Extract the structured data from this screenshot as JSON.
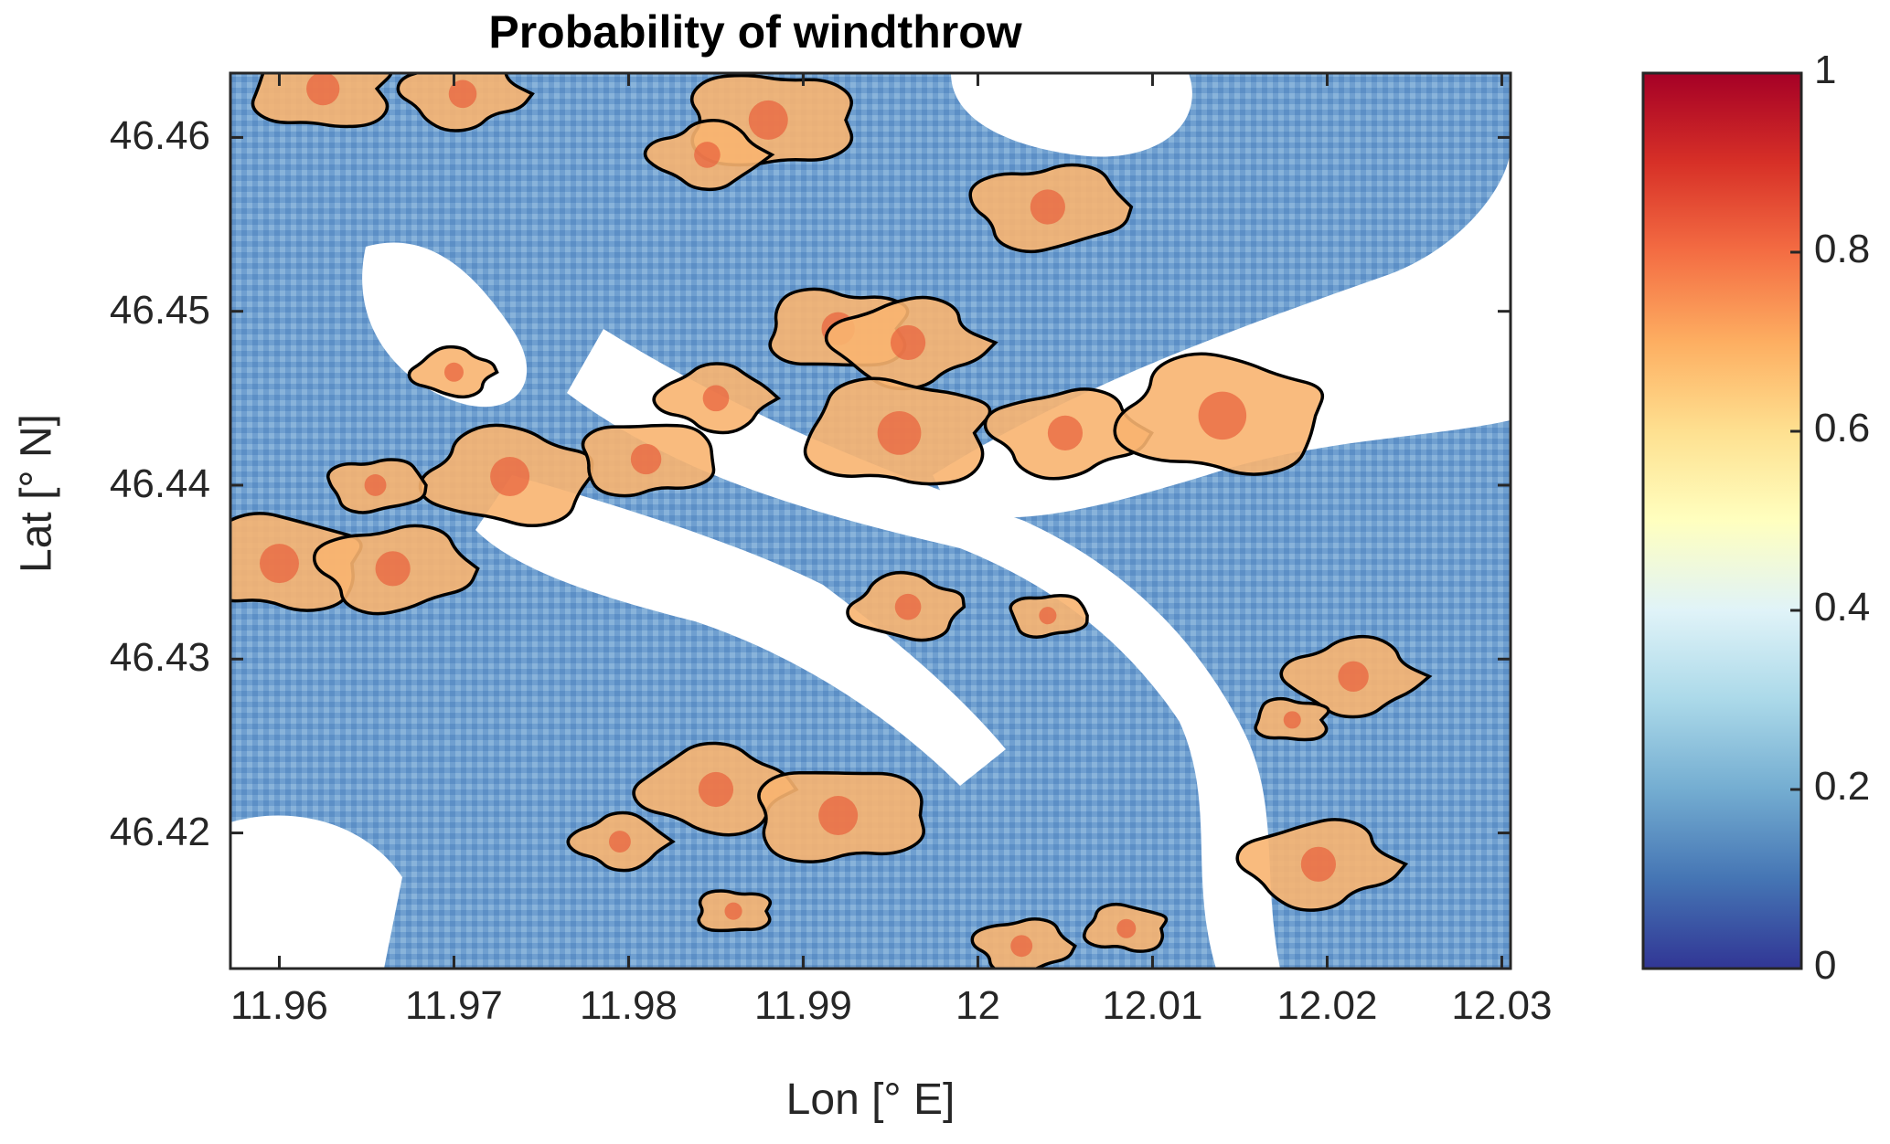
{
  "title": "Probability of windthrow",
  "colors": {
    "axis": "#262626",
    "contour": "#000000",
    "nodata": "#ffffff",
    "low": "#2b3a8f",
    "mid_low": "#5a8cc4",
    "mid": "#f3f6f8",
    "mid_high": "#f6c27a",
    "high": "#a50f15"
  },
  "map": {
    "xlabel": "Lon [° E]",
    "ylabel": "Lat [° N]",
    "xlim": [
      11.9572,
      12.0305
    ],
    "ylim": [
      46.4122,
      46.4637
    ],
    "xticks": [
      11.96,
      11.97,
      11.98,
      11.99,
      12,
      12.01,
      12.02,
      12.03
    ],
    "xtick_labels": [
      "11.96",
      "11.97",
      "11.98",
      "11.99",
      "12",
      "12.01",
      "12.02",
      "12.03"
    ],
    "yticks": [
      46.42,
      46.43,
      46.44,
      46.45,
      46.46
    ],
    "ytick_labels": [
      "46.42",
      "46.43",
      "46.44",
      "46.45",
      "46.46"
    ]
  },
  "colorbar": {
    "range": [
      0,
      1
    ],
    "ticks": [
      0,
      0.2,
      0.4,
      0.6,
      0.8,
      1
    ],
    "tick_labels": [
      "0",
      "0.2",
      "0.4",
      "0.6",
      "0.8",
      "1"
    ],
    "colormap": "RdYlBu_r"
  },
  "windthrow_areas": [
    {
      "lon": 11.9625,
      "lat": 46.4628,
      "r": 0.0038
    },
    {
      "lon": 11.9705,
      "lat": 46.4625,
      "r": 0.0032
    },
    {
      "lon": 11.96,
      "lat": 46.4355,
      "r": 0.0045
    },
    {
      "lon": 11.9665,
      "lat": 46.4352,
      "r": 0.004
    },
    {
      "lon": 11.9732,
      "lat": 46.4405,
      "r": 0.0045
    },
    {
      "lon": 11.9655,
      "lat": 46.44,
      "r": 0.0025
    },
    {
      "lon": 11.97,
      "lat": 46.4465,
      "r": 0.0022
    },
    {
      "lon": 11.981,
      "lat": 46.4415,
      "r": 0.0035
    },
    {
      "lon": 11.985,
      "lat": 46.445,
      "r": 0.003
    },
    {
      "lon": 11.988,
      "lat": 46.461,
      "r": 0.0045
    },
    {
      "lon": 11.9845,
      "lat": 46.459,
      "r": 0.003
    },
    {
      "lon": 11.992,
      "lat": 46.449,
      "r": 0.0038
    },
    {
      "lon": 11.996,
      "lat": 46.4482,
      "r": 0.004
    },
    {
      "lon": 11.9955,
      "lat": 46.443,
      "r": 0.005
    },
    {
      "lon": 12.005,
      "lat": 46.443,
      "r": 0.004
    },
    {
      "lon": 12.014,
      "lat": 46.444,
      "r": 0.0055
    },
    {
      "lon": 12.004,
      "lat": 46.456,
      "r": 0.004
    },
    {
      "lon": 11.996,
      "lat": 46.433,
      "r": 0.003
    },
    {
      "lon": 12.004,
      "lat": 46.4325,
      "r": 0.002
    },
    {
      "lon": 11.985,
      "lat": 46.4225,
      "r": 0.004
    },
    {
      "lon": 11.992,
      "lat": 46.421,
      "r": 0.0045
    },
    {
      "lon": 11.9795,
      "lat": 46.4195,
      "r": 0.0025
    },
    {
      "lon": 11.986,
      "lat": 46.4155,
      "r": 0.002
    },
    {
      "lon": 12.0215,
      "lat": 46.429,
      "r": 0.0035
    },
    {
      "lon": 12.018,
      "lat": 46.4265,
      "r": 0.002
    },
    {
      "lon": 12.0195,
      "lat": 46.4182,
      "r": 0.004
    },
    {
      "lon": 12.0085,
      "lat": 46.4145,
      "r": 0.0022
    },
    {
      "lon": 12.0025,
      "lat": 46.4135,
      "r": 0.0025
    }
  ]
}
